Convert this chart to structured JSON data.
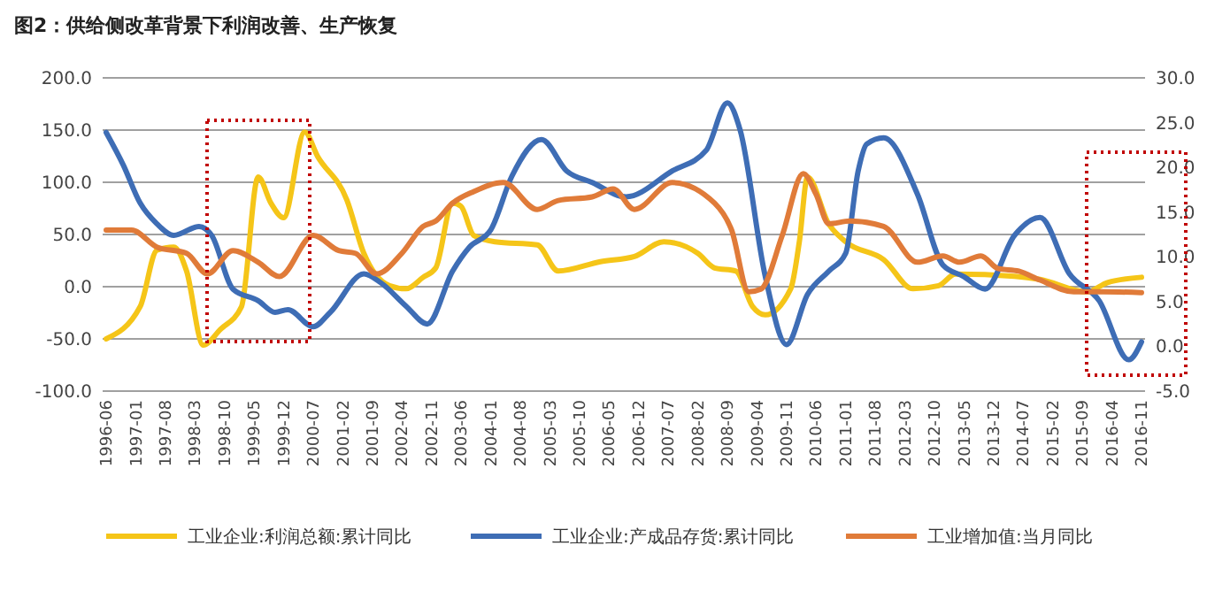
{
  "chart_data": {
    "type": "line",
    "title": "图2：供给侧改革背景下利润改善、生产恢复",
    "xlim": [
      "1996-06",
      "2016-11"
    ],
    "xticks": [
      "1996-06",
      "1997-01",
      "1997-08",
      "1998-03",
      "1998-10",
      "1999-05",
      "1999-12",
      "2000-07",
      "2001-02",
      "2001-09",
      "2002-04",
      "2002-11",
      "2003-06",
      "2004-01",
      "2004-08",
      "2005-03",
      "2005-10",
      "2006-05",
      "2006-12",
      "2007-07",
      "2008-02",
      "2008-09",
      "2009-04",
      "2009-11",
      "2010-06",
      "2011-01",
      "2011-08",
      "2012-03",
      "2012-10",
      "2013-05",
      "2013-12",
      "2014-07",
      "2015-02",
      "2015-09",
      "2016-04",
      "2016-11"
    ],
    "ylim": [
      -100,
      200
    ],
    "yticks": [
      {
        "value": -100,
        "label": "-100.0"
      },
      {
        "value": -50,
        "label": "-50.0"
      },
      {
        "value": 0,
        "label": "0.0"
      },
      {
        "value": 50,
        "label": "50.0"
      },
      {
        "value": 100,
        "label": "100.0"
      },
      {
        "value": 150,
        "label": "150.0"
      },
      {
        "value": 200,
        "label": "200.0"
      }
    ],
    "y2lim": [
      -5,
      30
    ],
    "y2ticks": [
      {
        "value": -5,
        "label": "-5.0"
      },
      {
        "value": 0,
        "label": "0.0"
      },
      {
        "value": 5,
        "label": "5.0"
      },
      {
        "value": 10,
        "label": "10.0"
      },
      {
        "value": 15,
        "label": "15.0"
      },
      {
        "value": 20,
        "label": "20.0"
      },
      {
        "value": 25,
        "label": "25.0"
      },
      {
        "value": 30,
        "label": "30.0"
      }
    ],
    "grid": "y",
    "legend": "bottom",
    "marker": "none",
    "line_style": "solid",
    "series": [
      {
        "name": "工业企业:利润总额:累计同比",
        "color": "#f5c518",
        "x": [
          "1996-06",
          "1997-02",
          "1997-06",
          "1997-10",
          "1998-01",
          "1998-05",
          "1998-09",
          "1999-02",
          "1999-06",
          "1999-09",
          "1999-12",
          "2000-05",
          "2000-08",
          "2001-03",
          "2001-07",
          "2002-01",
          "2002-05",
          "2002-09",
          "2002-12",
          "2003-04",
          "2003-06",
          "2003-09",
          "2004-02",
          "2004-12",
          "2005-05",
          "2006-03",
          "2006-11",
          "2007-06",
          "2008-02",
          "2008-06",
          "2008-11",
          "2009-03",
          "2009-06",
          "2009-12",
          "2010-02",
          "2010-04",
          "2010-09",
          "2011-01",
          "2011-10",
          "2012-05",
          "2012-11",
          "2013-03",
          "2014-05",
          "2014-11",
          "2015-10",
          "2016-03",
          "2016-11"
        ],
        "values": [
          -50,
          -19,
          35,
          38,
          15,
          -56,
          -41,
          -19,
          105,
          80,
          66,
          148,
          125,
          83,
          32,
          1,
          -2,
          9,
          18,
          80,
          77,
          49,
          43,
          40,
          15,
          24,
          29,
          43,
          32,
          18,
          15,
          -19,
          -27,
          -2,
          43,
          105,
          60,
          43,
          26,
          -2,
          1,
          12,
          10,
          7,
          -5,
          4,
          9
        ]
      },
      {
        "name": "工业企业:产成品存货:累计同比",
        "color": "#3e6db5",
        "axis": "y2",
        "x": [
          "1996-06",
          "1996-10",
          "1997-02",
          "1997-06",
          "1997-10",
          "1998-04",
          "1998-07",
          "1998-12",
          "1999-06",
          "1999-10",
          "2000-01",
          "2000-07",
          "2000-11",
          "2001-07",
          "2001-11",
          "2002-05",
          "2002-10",
          "2003-04",
          "2003-08",
          "2004-01",
          "2004-06",
          "2005-01",
          "2005-07",
          "2006-01",
          "2006-09",
          "2007-08",
          "2008-04",
          "2008-09",
          "2008-12",
          "2009-06",
          "2009-11",
          "2010-04",
          "2010-09",
          "2011-01",
          "2011-04",
          "2011-06",
          "2011-10",
          "2012-06",
          "2012-12",
          "2013-05",
          "2013-10",
          "2014-05",
          "2014-11",
          "2015-06",
          "2016-01",
          "2016-08",
          "2016-11"
        ],
        "values": [
          23.9,
          20.3,
          16,
          13.7,
          12.4,
          13.4,
          12.4,
          6.4,
          5.1,
          3.8,
          4.1,
          2.2,
          3.8,
          8.1,
          7.1,
          4.5,
          2.5,
          8.4,
          11.1,
          13,
          19,
          23.1,
          19.6,
          18.3,
          16.7,
          19.6,
          21.9,
          27.2,
          24.2,
          7.8,
          0.2,
          5.8,
          8.4,
          10.4,
          19.6,
          22.6,
          23.3,
          17,
          9.1,
          7.8,
          6.4,
          12.4,
          14.4,
          8.1,
          5.1,
          -1.5,
          0.5
        ]
      },
      {
        "name": "工业增加值:当月同比",
        "color": "#e07b39",
        "axis": "y2",
        "x": [
          "1996-06",
          "1996-12",
          "1997-06",
          "1998-01",
          "1998-06",
          "1998-12",
          "1999-06",
          "1999-11",
          "2000-07",
          "2001-01",
          "2001-05",
          "2001-10",
          "2002-04",
          "2002-09",
          "2002-12",
          "2003-04",
          "2003-09",
          "2004-04",
          "2004-12",
          "2005-05",
          "2006-01",
          "2006-06",
          "2006-11",
          "2007-08",
          "2008-06",
          "2008-10",
          "2009-02",
          "2009-05",
          "2009-10",
          "2010-03",
          "2010-06",
          "2010-09",
          "2011-02",
          "2011-10",
          "2012-06",
          "2012-12",
          "2013-04",
          "2013-09",
          "2014-01",
          "2014-06",
          "2014-11",
          "2015-07",
          "2016-02",
          "2016-11"
        ],
        "values": [
          13,
          13,
          11.1,
          10.4,
          8.1,
          10.7,
          9.4,
          7.8,
          12.4,
          10.7,
          10.4,
          8.1,
          10.4,
          13.4,
          14,
          16,
          17.3,
          18.3,
          15.3,
          16.3,
          16.7,
          17.6,
          15.3,
          18.3,
          16,
          13,
          6.1,
          6.4,
          12.4,
          19.3,
          17,
          13.7,
          14,
          13.4,
          9.4,
          10.1,
          9.4,
          10.1,
          8.7,
          8.4,
          7.4,
          6.1,
          6.1,
          6
        ]
      }
    ]
  }
}
